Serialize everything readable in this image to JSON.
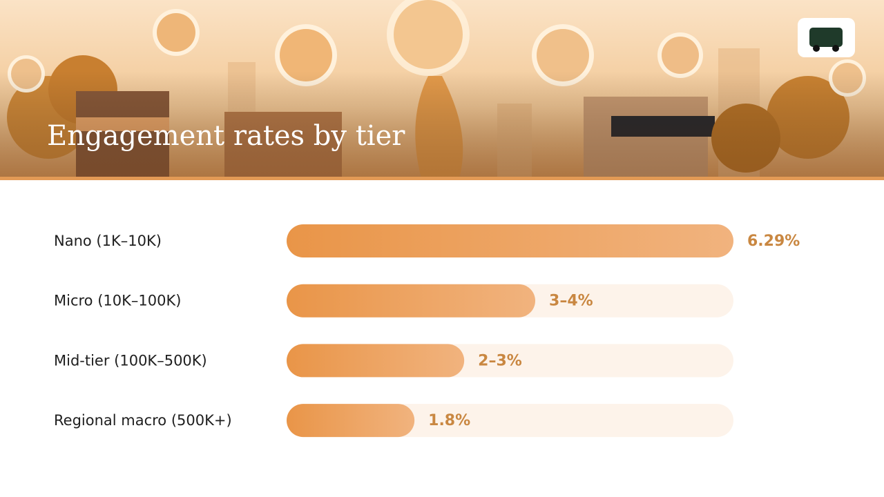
{
  "chart_data": {
    "type": "bar",
    "orientation": "horizontal",
    "title": "Engagement rates by tier",
    "categories": [
      "Nano (1K–10K)",
      "Micro (10K–100K)",
      "Mid-tier (100K–500K)",
      "Regional macro (500K+)"
    ],
    "values": [
      6.29,
      3.5,
      2.5,
      1.8
    ],
    "value_labels": [
      "6.29%",
      "3–4%",
      "2–3%",
      "1.8%"
    ],
    "color": "#ec9d55",
    "xlim": [
      0,
      6.29
    ]
  }
}
